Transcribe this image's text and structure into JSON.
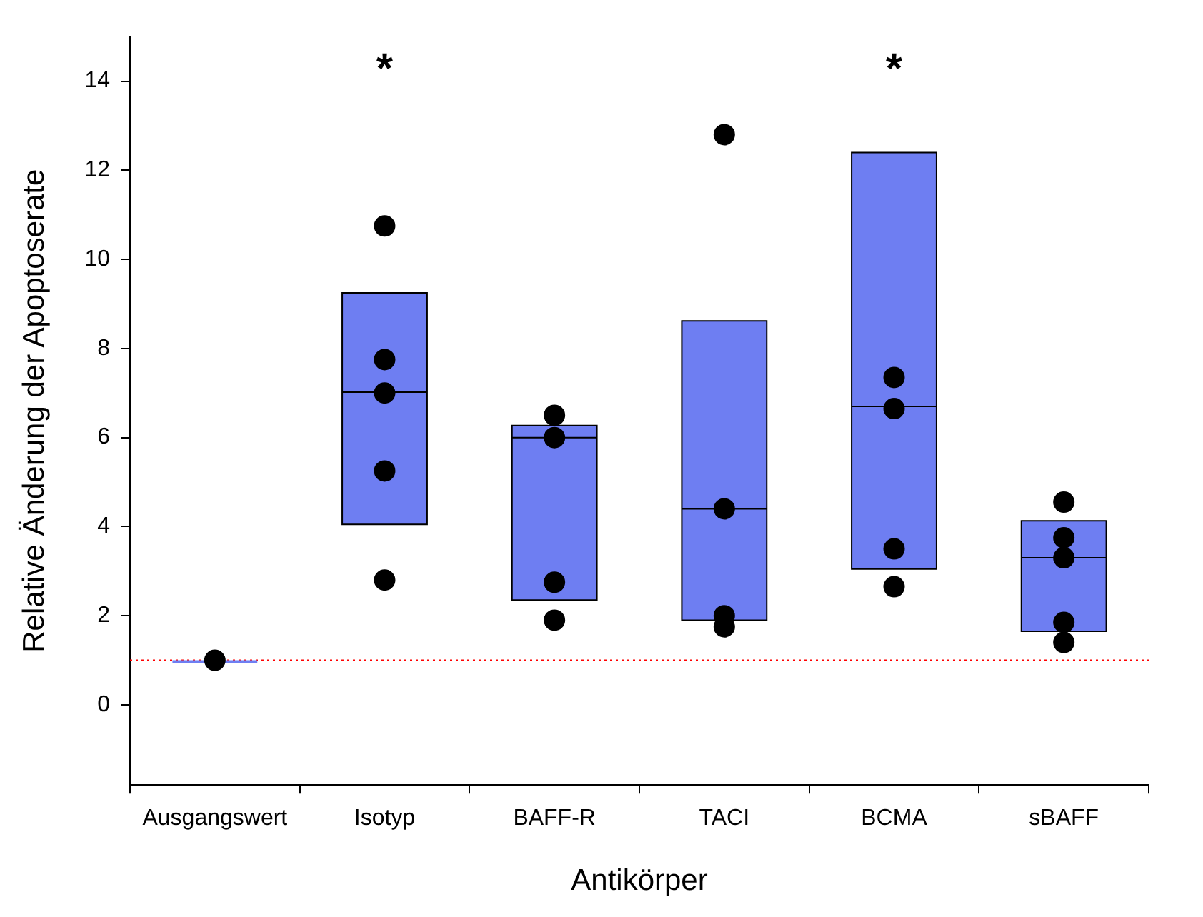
{
  "chart_data": {
    "type": "box",
    "xlabel": "Antikörper",
    "ylabel": "Relative Änderung der Apoptoserate",
    "categories": [
      "Ausgangswert",
      "Isotyp",
      "BAFF-R",
      "TACI",
      "BCMA",
      "sBAFF"
    ],
    "ylim": [
      -1.8,
      15
    ],
    "yticks": [
      0,
      2,
      4,
      6,
      8,
      10,
      12,
      14
    ],
    "series": [
      {
        "type": "box",
        "color": "#6e7ef2",
        "boxes": [
          {
            "low": 1,
            "q1": 1,
            "median": 1,
            "q3": 1,
            "high": 1
          },
          {
            "low": 4.05,
            "q1": 4.05,
            "median": 7.02,
            "q3": 9.25,
            "high": 9.25
          },
          {
            "low": 2.35,
            "q1": 2.35,
            "median": 6.0,
            "q3": 6.27,
            "high": 6.27
          },
          {
            "low": 1.9,
            "q1": 1.9,
            "median": 4.4,
            "q3": 8.62,
            "high": 8.62
          },
          {
            "low": 3.05,
            "q1": 3.05,
            "median": 6.7,
            "q3": 12.4,
            "high": 12.4
          },
          {
            "low": 1.65,
            "q1": 1.65,
            "median": 3.3,
            "q3": 4.13,
            "high": 4.13
          }
        ]
      },
      {
        "type": "scatter",
        "color": "#000000",
        "marker": "circle",
        "x": [
          "Ausgangswert",
          "Isotyp",
          "Isotyp",
          "Isotyp",
          "Isotyp",
          "Isotyp",
          "BAFF-R",
          "BAFF-R",
          "BAFF-R",
          "BAFF-R",
          "TACI",
          "TACI",
          "TACI",
          "TACI",
          "BCMA",
          "BCMA",
          "BCMA",
          "BCMA",
          "sBAFF",
          "sBAFF",
          "sBAFF",
          "sBAFF",
          "sBAFF"
        ],
        "values": [
          1,
          10.75,
          7.75,
          7.0,
          5.25,
          2.8,
          6.5,
          6.0,
          2.75,
          1.9,
          12.8,
          4.4,
          2.0,
          1.75,
          7.35,
          6.65,
          3.5,
          2.65,
          4.55,
          3.75,
          3.3,
          1.85,
          1.4
        ]
      }
    ],
    "ref_lines": [
      {
        "axis": "y",
        "value": 1,
        "color": "#ff0000",
        "line_style": "dotted"
      }
    ],
    "annotations": [
      "*",
      "*"
    ]
  }
}
